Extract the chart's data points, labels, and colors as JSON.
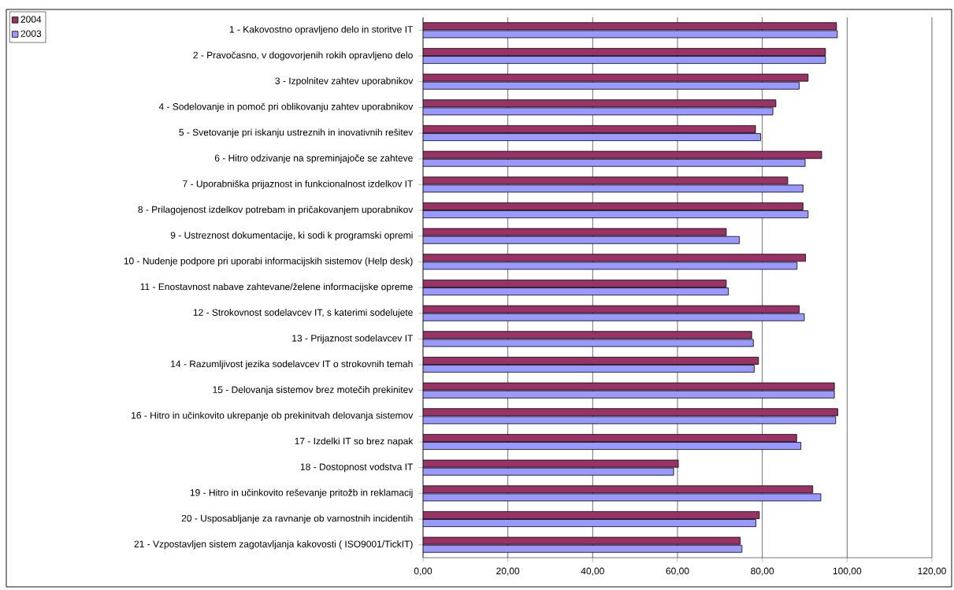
{
  "chart_data": {
    "type": "bar",
    "orientation": "horizontal",
    "categories": [
      "1 - Kakovostno opravljeno delo in storitve IT",
      "2 - Pravočasno, v dogovorjenih rokih opravljeno delo",
      "3 - Izpolnitev zahtev uporabnikov",
      "4 - Sodelovanje in pomoč pri oblikovanju zahtev uporabnikov",
      "5 - Svetovanje pri iskanju ustreznih in inovativnih rešitev",
      "6 - Hitro odzivanje na spreminjajoče se zahteve",
      "7 - Uporabniška prijaznost in funkcionalnost izdelkov IT",
      "8 - Prilagojenost izdelkov potrebam in pričakovanjem uporabnikov",
      "9 - Ustreznost dokumentacije, ki sodi k programski opremi",
      "10 - Nudenje podpore pri uporabi informacijskih sistemov (Help desk)",
      "11 - Enostavnost nabave zahtevane/želene informacijske opreme",
      "12 - Strokovnost sodelavcev IT, s katerimi sodelujete",
      "13 - Prijaznost sodelavcev IT",
      "14 - Razumljivost jezika sodelavcev IT o strokovnih temah",
      "15 - Delovanja sistemov brez motečih prekinitev",
      "16 - Hitro in učinkovito ukrepanje ob prekinitvah delovanja sistemov",
      "17 - Izdelki IT so brez napak",
      "18 - Dostopnost vodstva IT",
      "19 - Hitro in učinkovito reševanje pritožb in reklamacij",
      "20 - Usposabljanje za ravnanje ob varnostnih incidentih",
      "21 - Vzpostavljen sistem zagotavljanja kakovosti ( ISO9001/TickIT)"
    ],
    "series": [
      {
        "name": "2004",
        "color": "#993366",
        "values": [
          97.5,
          94.9,
          90.8,
          83.2,
          78.4,
          94.0,
          86.0,
          89.6,
          71.5,
          90.2,
          71.5,
          88.7,
          77.5,
          79.1,
          97.0,
          97.8,
          88.1,
          60.2,
          91.9,
          79.3,
          74.8
        ]
      },
      {
        "name": "2003",
        "color": "#9999ff",
        "values": [
          97.7,
          94.9,
          88.7,
          82.5,
          79.6,
          90.1,
          89.6,
          90.8,
          74.6,
          88.2,
          72.0,
          89.9,
          77.9,
          78.1,
          97.0,
          97.3,
          89.1,
          59.1,
          93.8,
          78.5,
          75.2
        ]
      }
    ],
    "xlim": [
      0,
      120
    ],
    "xticks": [
      {
        "value": 0,
        "label": "0,00"
      },
      {
        "value": 20,
        "label": "20,00"
      },
      {
        "value": 40,
        "label": "40,00"
      },
      {
        "value": 60,
        "label": "60,00"
      },
      {
        "value": 80,
        "label": "80,00"
      },
      {
        "value": 100,
        "label": "100,00"
      },
      {
        "value": 120,
        "label": "120,00"
      }
    ],
    "grid": "x",
    "legend": "top left"
  }
}
